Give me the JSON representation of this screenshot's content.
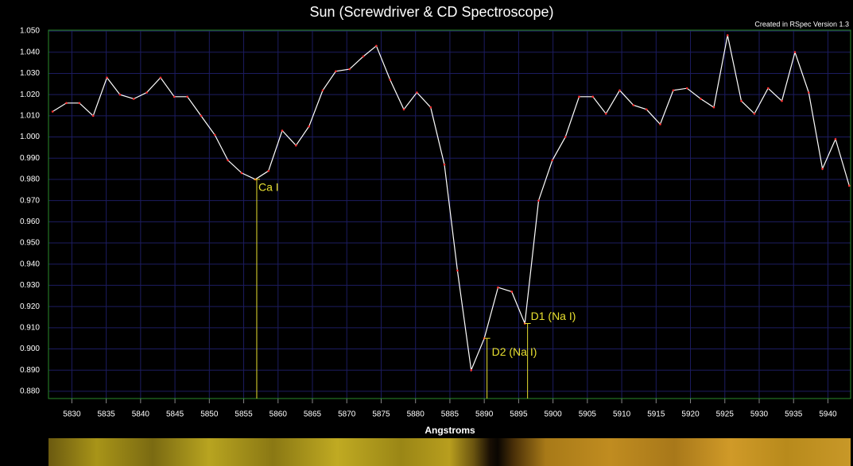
{
  "chart_data": {
    "type": "line",
    "title": "Sun (Screwdriver & CD Spectroscope)",
    "subtitle": "Created in RSpec Version 1.3",
    "x_label": "Angstroms",
    "color": "#ffffff",
    "point_color": "#ff3030",
    "grid": true,
    "x": [
      5827.2,
      5829.2,
      5831.1,
      5833.1,
      5835.1,
      5837.0,
      5839.0,
      5840.9,
      5842.9,
      5844.9,
      5846.8,
      5848.8,
      5850.8,
      5852.7,
      5854.7,
      5856.7,
      5858.6,
      5860.6,
      5862.6,
      5864.5,
      5866.5,
      5868.4,
      5870.4,
      5872.4,
      5874.3,
      5876.3,
      5878.3,
      5880.2,
      5882.2,
      5884.2,
      5886.1,
      5888.1,
      5890.0,
      5892.0,
      5894.0,
      5895.9,
      5897.9,
      5899.9,
      5901.8,
      5903.8,
      5905.8,
      5907.7,
      5909.7,
      5911.7,
      5913.6,
      5915.6,
      5917.5,
      5919.5,
      5921.5,
      5923.4,
      5925.4,
      5927.4,
      5929.3,
      5931.3,
      5933.3,
      5935.2,
      5937.2,
      5939.2,
      5941.1,
      5943.1
    ],
    "values": [
      1.012,
      1.016,
      1.016,
      1.01,
      1.028,
      1.02,
      1.018,
      1.021,
      1.028,
      1.019,
      1.019,
      1.01,
      1.001,
      0.989,
      0.983,
      0.98,
      0.984,
      1.003,
      0.996,
      1.005,
      1.022,
      1.031,
      1.032,
      1.038,
      1.043,
      1.027,
      1.013,
      1.021,
      1.014,
      0.987,
      0.937,
      0.89,
      0.905,
      0.929,
      0.927,
      0.912,
      0.97,
      0.989,
      1.0,
      1.019,
      1.019,
      1.011,
      1.022,
      1.015,
      1.013,
      1.006,
      1.022,
      1.023,
      1.018,
      1.014,
      1.048,
      1.017,
      1.011,
      1.023,
      1.017,
      1.04,
      1.021,
      0.985,
      0.999,
      0.977
    ],
    "xlim": [
      5826.6,
      5943.3
    ],
    "ylim": [
      0.8766,
      1.0504
    ],
    "xticks": [
      5830,
      5835,
      5840,
      5845,
      5850,
      5855,
      5860,
      5865,
      5870,
      5875,
      5880,
      5885,
      5890,
      5895,
      5900,
      5905,
      5910,
      5915,
      5920,
      5925,
      5930,
      5935,
      5940
    ],
    "yticks": [
      {
        "value": 0.88,
        "label": "0.880"
      },
      {
        "value": 0.89,
        "label": "0.890"
      },
      {
        "value": 0.9,
        "label": "0.900"
      },
      {
        "value": 0.91,
        "label": "0.910"
      },
      {
        "value": 0.92,
        "label": "0.920"
      },
      {
        "value": 0.93,
        "label": "0.930"
      },
      {
        "value": 0.94,
        "label": "0.940"
      },
      {
        "value": 0.95,
        "label": "0.950"
      },
      {
        "value": 0.96,
        "label": "0.960"
      },
      {
        "value": 0.97,
        "label": "0.970"
      },
      {
        "value": 0.98,
        "label": "0.980"
      },
      {
        "value": 0.99,
        "label": "0.990"
      },
      {
        "value": 1.0,
        "label": "1.000"
      },
      {
        "value": 1.01,
        "label": "1.010"
      },
      {
        "value": 1.02,
        "label": "1.020"
      },
      {
        "value": 1.03,
        "label": "1.030"
      },
      {
        "value": 1.04,
        "label": "1.040"
      },
      {
        "value": 1.05,
        "label": "1.050"
      }
    ],
    "annotation_color": "#e8e030",
    "annotations": [
      {
        "label": "Ca I",
        "x": 5856.9,
        "y": 0.98
      },
      {
        "label": "D2 (Na I)",
        "x": 5890.4,
        "y": 0.905
      },
      {
        "label": "D1 (Na I)",
        "x": 5896.3,
        "y": 0.912
      }
    ]
  }
}
